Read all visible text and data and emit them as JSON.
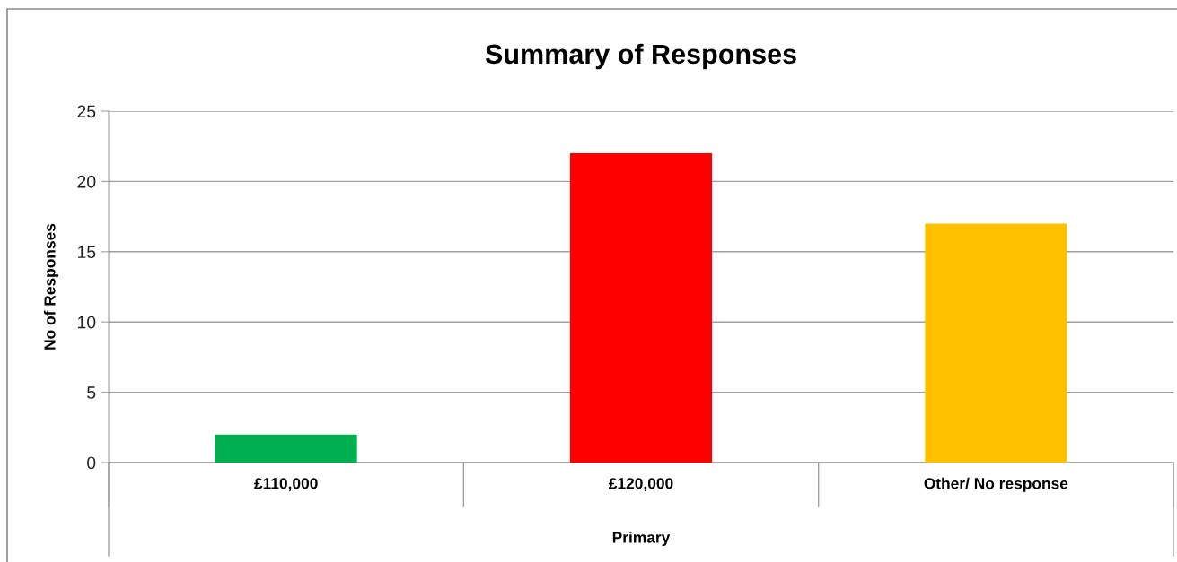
{
  "chart_data": {
    "type": "bar",
    "title": "Summary of Responses",
    "xlabel": "Primary",
    "ylabel": "No of Responses",
    "categories": [
      "£110,000",
      "£120,000",
      "Other/ No response"
    ],
    "values": [
      2,
      22,
      17
    ],
    "colors": [
      "#00b050",
      "#ff0000",
      "#ffc000"
    ],
    "ylim": [
      0,
      25
    ],
    "yticks": [
      0,
      5,
      10,
      15,
      20,
      25
    ],
    "grid": "y"
  }
}
